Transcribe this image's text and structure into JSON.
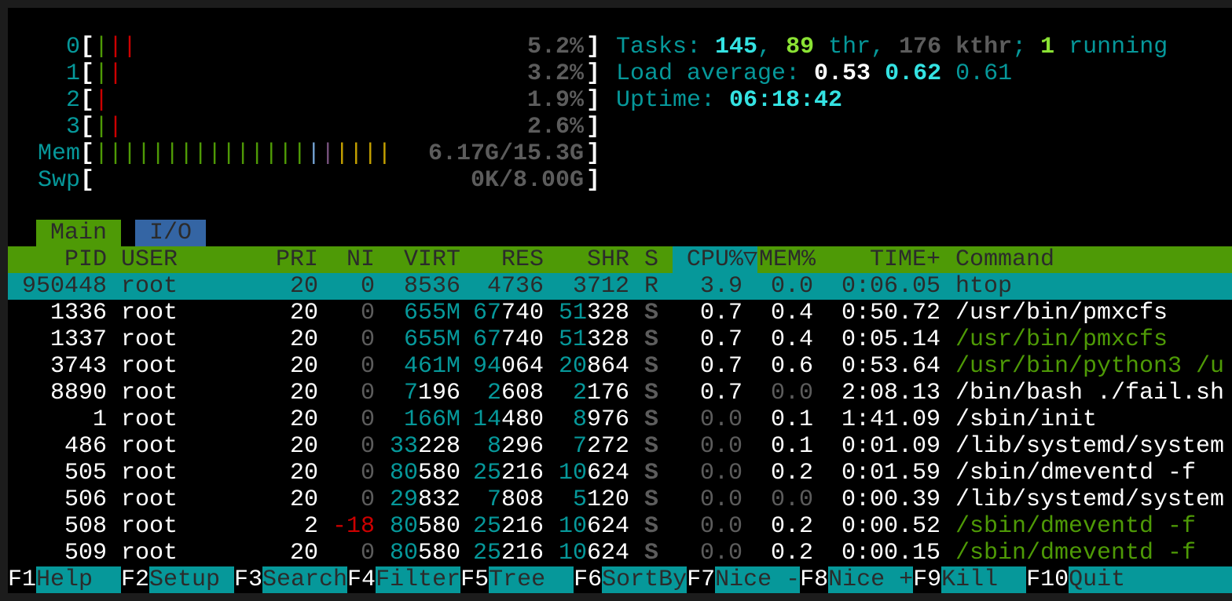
{
  "colors": {
    "teal": "#06989a",
    "bright_cyan": "#34e2e2",
    "green": "#4e9a06",
    "bright_green": "#8ae234",
    "red": "#cc0000",
    "blue": "#729fcf",
    "magenta": "#75507b",
    "yellow": "#c4a000",
    "gray": "#5c5c5c",
    "header_bg": "#4e9a06",
    "selected_bg": "#06989a",
    "io_tab_bg": "#3465a4"
  },
  "meters": [
    {
      "label": "0",
      "bars": [
        "green",
        "red",
        "red"
      ],
      "value": "5.2%"
    },
    {
      "label": "1",
      "bars": [
        "green",
        "red"
      ],
      "value": "3.2%"
    },
    {
      "label": "2",
      "bars": [
        "red"
      ],
      "value": "1.9%"
    },
    {
      "label": "3",
      "bars": [
        "green",
        "red"
      ],
      "value": "2.6%"
    },
    {
      "label": "Mem",
      "bars": [
        "green",
        "green",
        "green",
        "green",
        "green",
        "green",
        "green",
        "green",
        "green",
        "green",
        "green",
        "green",
        "green",
        "green",
        "green",
        "blue",
        "magenta",
        "yellow",
        "yellow",
        "yellow",
        "yellow"
      ],
      "value": "6.17G/15.3G"
    },
    {
      "label": "Swp",
      "bars": [],
      "value": "0K/8.00G"
    }
  ],
  "summary": {
    "tasks_label": "Tasks: ",
    "tasks": "145",
    "sep1": ", ",
    "threads": "89",
    "thr_label": " thr, ",
    "kthreads": "176 kthr",
    "sep2": "; ",
    "running": "1",
    "running_label": " running",
    "load_label": "Load average: ",
    "load1": "0.53",
    "load5": "0.62",
    "load15": "0.61",
    "uptime_label": "Uptime: ",
    "uptime": "06:18:42"
  },
  "tabs": [
    {
      "label": "Main",
      "active": true
    },
    {
      "label": "I/O",
      "active": false
    }
  ],
  "columns": [
    "PID",
    "USER",
    "PRI",
    "NI",
    "VIRT",
    "RES",
    "SHR",
    "S",
    "CPU%▽",
    "MEM%",
    "TIME+",
    "Command"
  ],
  "sort_column": "CPU%",
  "processes": [
    {
      "pid": "950448",
      "user": "root",
      "pri": "20",
      "ni": "0",
      "virt": "8536",
      "res": "4736",
      "shr": "3712",
      "s": "R",
      "cpu": "3.9",
      "mem": "0.0",
      "time": "0:06.05",
      "command": "htop",
      "selected": true
    },
    {
      "pid": "1336",
      "user": "root",
      "pri": "20",
      "ni": "0",
      "virt": "655M",
      "res": "67740",
      "shr": "51328",
      "s": "S",
      "cpu": "0.7",
      "mem": "0.4",
      "time": "0:50.72",
      "command": "/usr/bin/pmxcfs",
      "command_color": "white"
    },
    {
      "pid": "1337",
      "user": "root",
      "pri": "20",
      "ni": "0",
      "virt": "655M",
      "res": "67740",
      "shr": "51328",
      "s": "S",
      "cpu": "0.7",
      "mem": "0.4",
      "time": "0:05.14",
      "command": "/usr/bin/pmxcfs",
      "command_color": "green"
    },
    {
      "pid": "3743",
      "user": "root",
      "pri": "20",
      "ni": "0",
      "virt": "461M",
      "res": "94064",
      "shr": "20864",
      "s": "S",
      "cpu": "0.7",
      "mem": "0.6",
      "time": "0:53.64",
      "command": "/usr/bin/python3 /u",
      "command_color": "green"
    },
    {
      "pid": "8890",
      "user": "root",
      "pri": "20",
      "ni": "0",
      "virt": "7196",
      "res": "2608",
      "shr": "2176",
      "s": "S",
      "cpu": "0.7",
      "mem": "0.0",
      "time": "2:08.13",
      "command": "/bin/bash ./fail.sh",
      "command_color": "white"
    },
    {
      "pid": "1",
      "user": "root",
      "pri": "20",
      "ni": "0",
      "virt": "166M",
      "res": "14480",
      "shr": "8976",
      "s": "S",
      "cpu": "0.0",
      "mem": "0.1",
      "time": "1:41.09",
      "command": "/sbin/init",
      "command_color": "white"
    },
    {
      "pid": "486",
      "user": "root",
      "pri": "20",
      "ni": "0",
      "virt": "33228",
      "res": "8296",
      "shr": "7272",
      "s": "S",
      "cpu": "0.0",
      "mem": "0.1",
      "time": "0:01.09",
      "command": "/lib/systemd/system",
      "command_color": "white"
    },
    {
      "pid": "505",
      "user": "root",
      "pri": "20",
      "ni": "0",
      "virt": "80580",
      "res": "25216",
      "shr": "10624",
      "s": "S",
      "cpu": "0.0",
      "mem": "0.2",
      "time": "0:01.59",
      "command": "/sbin/dmeventd -f",
      "command_color": "white"
    },
    {
      "pid": "506",
      "user": "root",
      "pri": "20",
      "ni": "0",
      "virt": "29832",
      "res": "7808",
      "shr": "5120",
      "s": "S",
      "cpu": "0.0",
      "mem": "0.0",
      "time": "0:00.39",
      "command": "/lib/systemd/system",
      "command_color": "white"
    },
    {
      "pid": "508",
      "user": "root",
      "pri": "2",
      "ni": "-18",
      "virt": "80580",
      "res": "25216",
      "shr": "10624",
      "s": "S",
      "cpu": "0.0",
      "mem": "0.2",
      "time": "0:00.52",
      "command": "/sbin/dmeventd -f",
      "command_color": "green"
    },
    {
      "pid": "509",
      "user": "root",
      "pri": "20",
      "ni": "0",
      "virt": "80580",
      "res": "25216",
      "shr": "10624",
      "s": "S",
      "cpu": "0.0",
      "mem": "0.2",
      "time": "0:00.15",
      "command": "/sbin/dmeventd -f",
      "command_color": "green"
    }
  ],
  "footer": [
    {
      "key": "F1",
      "label": "Help"
    },
    {
      "key": "F2",
      "label": "Setup"
    },
    {
      "key": "F3",
      "label": "Search"
    },
    {
      "key": "F4",
      "label": "Filter"
    },
    {
      "key": "F5",
      "label": "Tree"
    },
    {
      "key": "F6",
      "label": "SortBy"
    },
    {
      "key": "F7",
      "label": "Nice -"
    },
    {
      "key": "F8",
      "label": "Nice +"
    },
    {
      "key": "F9",
      "label": "Kill"
    },
    {
      "key": "F10",
      "label": "Quit"
    }
  ]
}
